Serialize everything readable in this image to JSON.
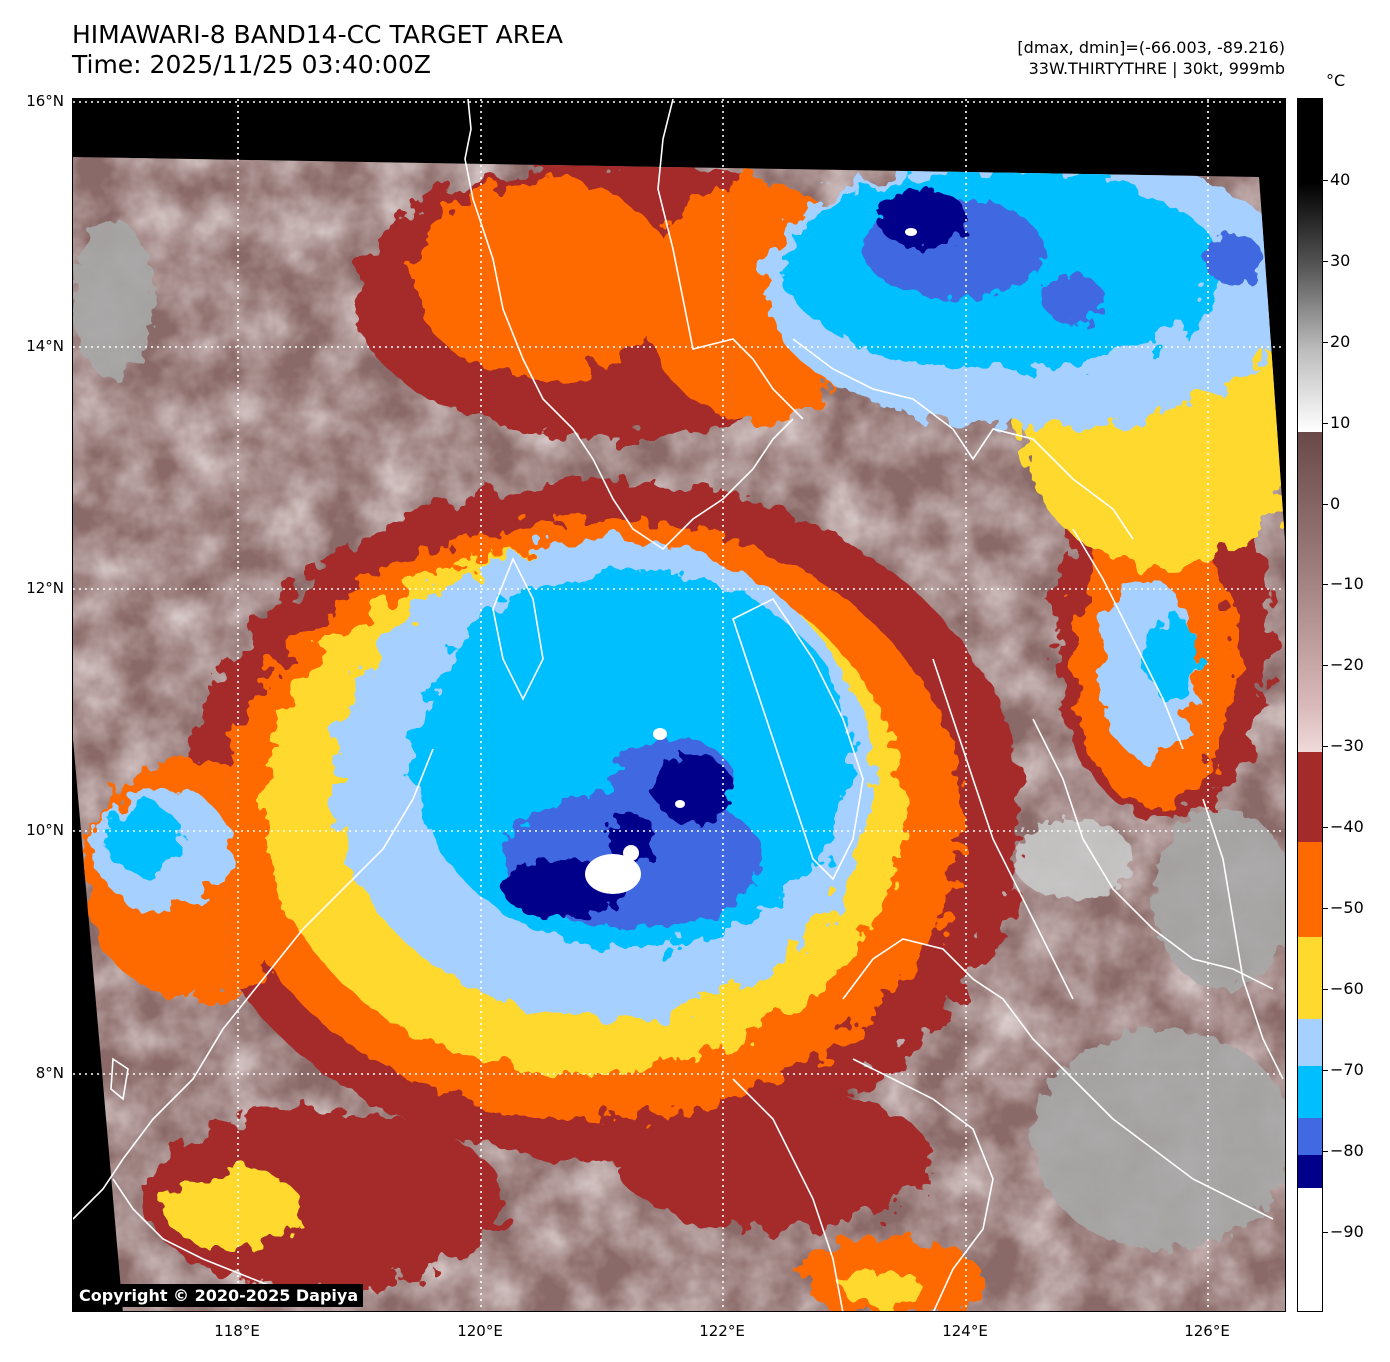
{
  "header": {
    "title": "HIMAWARI-8 BAND14-CC TARGET AREA",
    "time": "Time: 2025/11/25 03:40:00Z",
    "range": "[dmax, dmin]=(-66.003, -89.216)",
    "storm": "33W.THIRTYTHRE | 30kt, 999mb"
  },
  "map": {
    "lat_labels": [
      "16°N",
      "14°N",
      "12°N",
      "10°N",
      "8°N"
    ],
    "lon_labels": [
      "118°E",
      "120°E",
      "122°E",
      "124°E",
      "126°E"
    ],
    "copyright": "Copyright © 2020-2025 Dapiya"
  },
  "colorbar": {
    "unit": "°C",
    "ticks": [
      "40",
      "30",
      "20",
      "10",
      "0",
      "−10",
      "−20",
      "−30",
      "−40",
      "−50",
      "−60",
      "−70",
      "−80",
      "−90"
    ],
    "colors": {
      "black": "#000000",
      "warm_gray": "#7a5a58",
      "pink": "#e8c8c8",
      "dark_red": "#a52a2a",
      "orange": "#ff6a00",
      "yellow": "#ffd92e",
      "light_blue": "#a6d0ff",
      "cyan": "#00bfff",
      "royal_blue": "#4169e1",
      "navy": "#00008b",
      "white": "#ffffff"
    }
  }
}
